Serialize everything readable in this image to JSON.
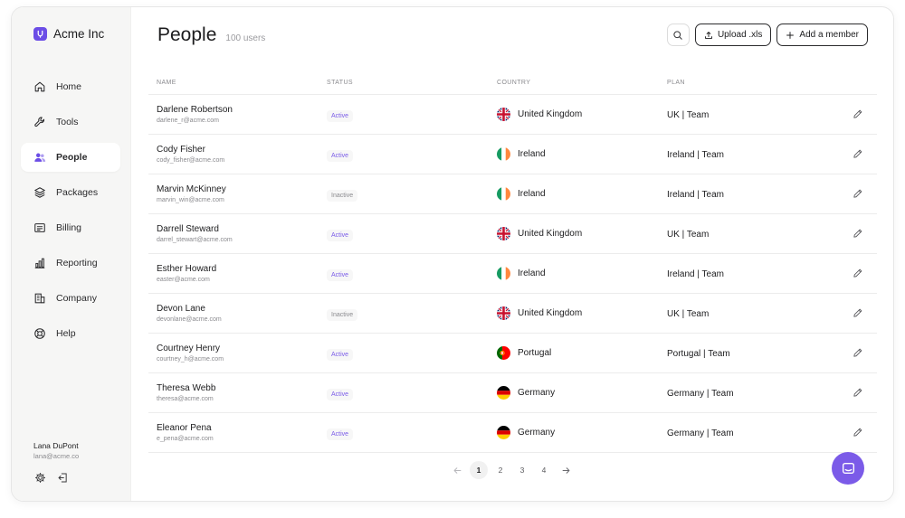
{
  "brand": {
    "name": "Acme Inc"
  },
  "nav": [
    {
      "label": "Home",
      "icon": "home-icon",
      "active": false
    },
    {
      "label": "Tools",
      "icon": "wrench-icon",
      "active": false
    },
    {
      "label": "People",
      "icon": "users-icon",
      "active": true
    },
    {
      "label": "Packages",
      "icon": "layers-icon",
      "active": false
    },
    {
      "label": "Billing",
      "icon": "receipt-icon",
      "active": false
    },
    {
      "label": "Reporting",
      "icon": "bar-chart-icon",
      "active": false
    },
    {
      "label": "Company",
      "icon": "building-icon",
      "active": false
    },
    {
      "label": "Help",
      "icon": "lifebuoy-icon",
      "active": false
    }
  ],
  "user": {
    "name": "Lana DuPont",
    "email": "lana@acme.co"
  },
  "page": {
    "title": "People",
    "count": "100 users"
  },
  "toolbar": {
    "upload_label": "Upload .xls",
    "add_label": "Add a member"
  },
  "table": {
    "headers": {
      "name": "NAME",
      "status": "STATUS",
      "country": "COUNTRY",
      "plan": "PLAN"
    },
    "rows": [
      {
        "name": "Darlene Robertson",
        "email": "darlene_r@acme.com",
        "status": "Active",
        "country": "United Kingdom",
        "flag": "uk",
        "plan": "UK | Team"
      },
      {
        "name": "Cody Fisher",
        "email": "cody_fisher@acme.com",
        "status": "Active",
        "country": "Ireland",
        "flag": "ie",
        "plan": "Ireland | Team"
      },
      {
        "name": "Marvin McKinney",
        "email": "marvin_win@acme.com",
        "status": "Inactive",
        "country": "Ireland",
        "flag": "ie",
        "plan": "Ireland | Team"
      },
      {
        "name": "Darrell Steward",
        "email": "darrel_stewart@acme.com",
        "status": "Active",
        "country": "United Kingdom",
        "flag": "uk",
        "plan": "UK | Team"
      },
      {
        "name": "Esther Howard",
        "email": "easter@acme.com",
        "status": "Active",
        "country": "Ireland",
        "flag": "ie",
        "plan": "Ireland | Team"
      },
      {
        "name": "Devon Lane",
        "email": "devonlane@acme.com",
        "status": "Inactive",
        "country": "United Kingdom",
        "flag": "uk",
        "plan": "UK | Team"
      },
      {
        "name": "Courtney Henry",
        "email": "courtney_h@acme.com",
        "status": "Active",
        "country": "Portugal",
        "flag": "pt",
        "plan": "Portugal | Team"
      },
      {
        "name": "Theresa Webb",
        "email": "theresa@acme.com",
        "status": "Active",
        "country": "Germany",
        "flag": "de",
        "plan": "Germany | Team"
      },
      {
        "name": "Eleanor Pena",
        "email": "e_pena@acme.com",
        "status": "Active",
        "country": "Germany",
        "flag": "de",
        "plan": "Germany | Team"
      }
    ]
  },
  "pagination": {
    "pages": [
      "1",
      "2",
      "3",
      "4"
    ],
    "current": "1"
  },
  "colors": {
    "accent": "#7b5be8",
    "brand": "#6b4de6",
    "active_text": "#7a5be8",
    "inactive_text": "#8a8a8e"
  }
}
